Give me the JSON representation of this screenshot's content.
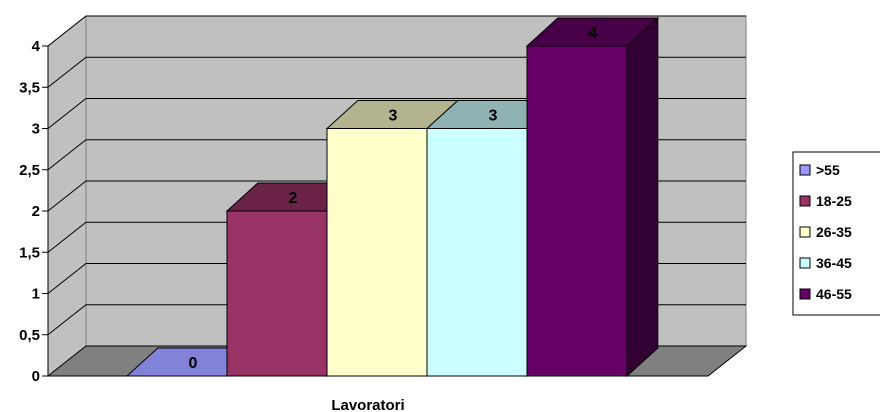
{
  "chart_data": {
    "type": "bar",
    "title": "",
    "xlabel": "Lavoratori",
    "ylabel": "",
    "categories": [
      "Lavoratori"
    ],
    "series": [
      {
        "name": ">55",
        "values": [
          0
        ]
      },
      {
        "name": "18-25",
        "values": [
          2
        ]
      },
      {
        "name": "26-35",
        "values": [
          3
        ]
      },
      {
        "name": "36-45",
        "values": [
          3
        ]
      },
      {
        "name": "46-55",
        "values": [
          4
        ]
      }
    ],
    "ylim": [
      0,
      4
    ],
    "yticks": [
      "0",
      "0,5",
      "1",
      "1,5",
      "2",
      "2,5",
      "3",
      "3,5",
      "4"
    ],
    "data_labels": [
      "0",
      "2",
      "3",
      "3",
      "4"
    ],
    "grid": true,
    "legend_position": "right",
    "style": "3d-clustered-column"
  },
  "colors": {
    "series": [
      "#9999ff",
      "#993366",
      "#ffffcc",
      "#ccffff",
      "#660066"
    ],
    "wall": "#c0c0c0",
    "floor": "#808080",
    "gridline": "#000000"
  }
}
